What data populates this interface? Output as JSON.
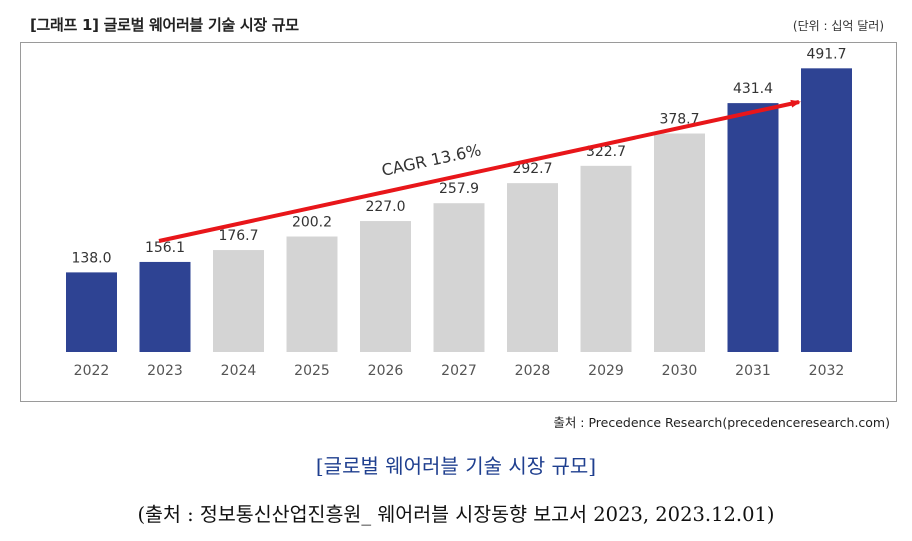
{
  "header": {
    "title": "[그래프 1] 글로벌 웨어러블 기술 시장 규모",
    "unit": "(단위 : 십억 달러)"
  },
  "source": "출처 : Precedence Research(precedenceresearch.com)",
  "caption": "[글로벌 웨어러블 기술 시장 규모]",
  "credit": "(출처 : 정보통신산업진흥원_ 웨어러블 시장동향 보고서 2023, 2023.12.01)",
  "colors": {
    "highlight": "#2e4393",
    "normal": "#d4d4d4",
    "arrow": "#e8161a"
  },
  "chart_data": {
    "type": "bar",
    "title": "글로벌 웨어러블 기술 시장 규모",
    "xlabel": "",
    "ylabel": "십억 달러",
    "ylim": [
      0,
      520
    ],
    "categories": [
      "2022",
      "2023",
      "2024",
      "2025",
      "2026",
      "2027",
      "2028",
      "2029",
      "2030",
      "2031",
      "2032"
    ],
    "values": [
      138.0,
      156.1,
      176.7,
      200.2,
      227.0,
      257.9,
      292.7,
      322.7,
      378.7,
      431.4,
      491.7
    ],
    "labels": [
      "138.0",
      "156.1",
      "176.7",
      "200.2",
      "227.0",
      "257.9",
      "292.7",
      "322.7",
      "378.7",
      "431.4",
      "491.7"
    ],
    "highlighted": [
      "2022",
      "2023",
      "2031",
      "2032"
    ],
    "annotation": "CAGR 13.6%"
  }
}
